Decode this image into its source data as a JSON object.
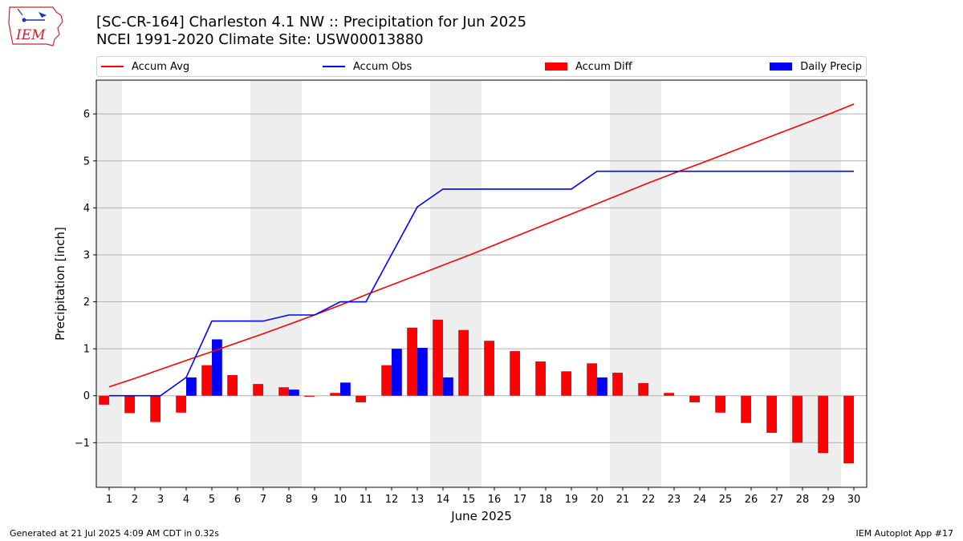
{
  "header": {
    "logo_text": "IEM",
    "title": "[SC-CR-164] Charleston 4.1 NW :: Precipitation for Jun 2025",
    "subtitle": "NCEI 1991-2020 Climate Site: USW00013880"
  },
  "footer": {
    "left": "Generated at 21 Jul 2025 4:09 AM CDT in 0.32s",
    "right": "IEM Autoplot App #17"
  },
  "colors": {
    "avg": "#ff0000",
    "obs": "#0000ff",
    "diff": "#ff0000",
    "daily": "#0000ff",
    "weekend": "#eeeeee",
    "grid": "#b0b0b0"
  },
  "legend": [
    {
      "label": "Accum Avg",
      "kind": "line",
      "color": "#ff0000"
    },
    {
      "label": "Accum Obs",
      "kind": "line",
      "color": "#0000ff"
    },
    {
      "label": "Accum Diff",
      "kind": "box",
      "color": "#ff0000"
    },
    {
      "label": "Daily Precip",
      "kind": "box",
      "color": "#0000ff"
    }
  ],
  "chart_data": {
    "type": "bar",
    "title": "[SC-CR-164] Charleston 4.1 NW :: Precipitation for Jun 2025",
    "xlabel": "June 2025",
    "ylabel": "Precipitation [inch]",
    "ylim": [
      -1.95,
      6.72
    ],
    "xlim": [
      0.5,
      30.5
    ],
    "yticks": [
      -1,
      0,
      1,
      2,
      3,
      4,
      5,
      6
    ],
    "ytick_labels": [
      "−1",
      "0",
      "1",
      "2",
      "3",
      "4",
      "5",
      "6"
    ],
    "grid": true,
    "legend_position": "top",
    "days": [
      1,
      2,
      3,
      4,
      5,
      6,
      7,
      8,
      9,
      10,
      11,
      12,
      13,
      14,
      15,
      16,
      17,
      18,
      19,
      20,
      21,
      22,
      23,
      24,
      25,
      26,
      27,
      28,
      29,
      30
    ],
    "shaded_days": [
      1,
      7,
      8,
      14,
      15,
      21,
      22,
      28,
      29
    ],
    "series": [
      {
        "name": "Accum Avg",
        "kind": "line",
        "values": [
          0.19,
          0.37,
          0.56,
          0.75,
          0.94,
          1.13,
          1.32,
          1.52,
          1.72,
          1.93,
          2.15,
          2.36,
          2.57,
          2.78,
          2.99,
          3.21,
          3.43,
          3.65,
          3.87,
          4.09,
          4.31,
          4.53,
          4.74,
          4.94,
          5.15,
          5.36,
          5.57,
          5.78,
          5.99,
          6.21
        ]
      },
      {
        "name": "Accum Obs",
        "kind": "line",
        "values": [
          0.0,
          0.0,
          0.0,
          0.39,
          1.59,
          1.59,
          1.59,
          1.72,
          1.72,
          2.0,
          2.0,
          3.01,
          4.02,
          4.4,
          4.4,
          4.4,
          4.4,
          4.4,
          4.4,
          4.78,
          4.78,
          4.78,
          4.78,
          4.78,
          4.78,
          4.78,
          4.78,
          4.78,
          4.78,
          4.78
        ]
      },
      {
        "name": "Accum Diff",
        "kind": "bar",
        "values": [
          -0.19,
          -0.37,
          -0.56,
          -0.36,
          0.65,
          0.44,
          0.25,
          0.18,
          -0.02,
          0.06,
          -0.14,
          0.65,
          1.45,
          1.62,
          1.4,
          1.17,
          0.95,
          0.73,
          0.52,
          0.69,
          0.49,
          0.27,
          0.06,
          -0.14,
          -0.36,
          -0.58,
          -0.79,
          -1.0,
          -1.22,
          -1.44
        ]
      },
      {
        "name": "Daily Precip",
        "kind": "bar",
        "values": [
          0,
          0,
          0,
          0.39,
          1.2,
          0,
          0,
          0.13,
          0,
          0.28,
          0,
          1.0,
          1.02,
          0.39,
          0,
          0,
          0,
          0,
          0,
          0.39,
          0,
          0,
          0,
          0,
          0,
          0,
          0,
          0,
          0,
          0
        ]
      }
    ]
  }
}
